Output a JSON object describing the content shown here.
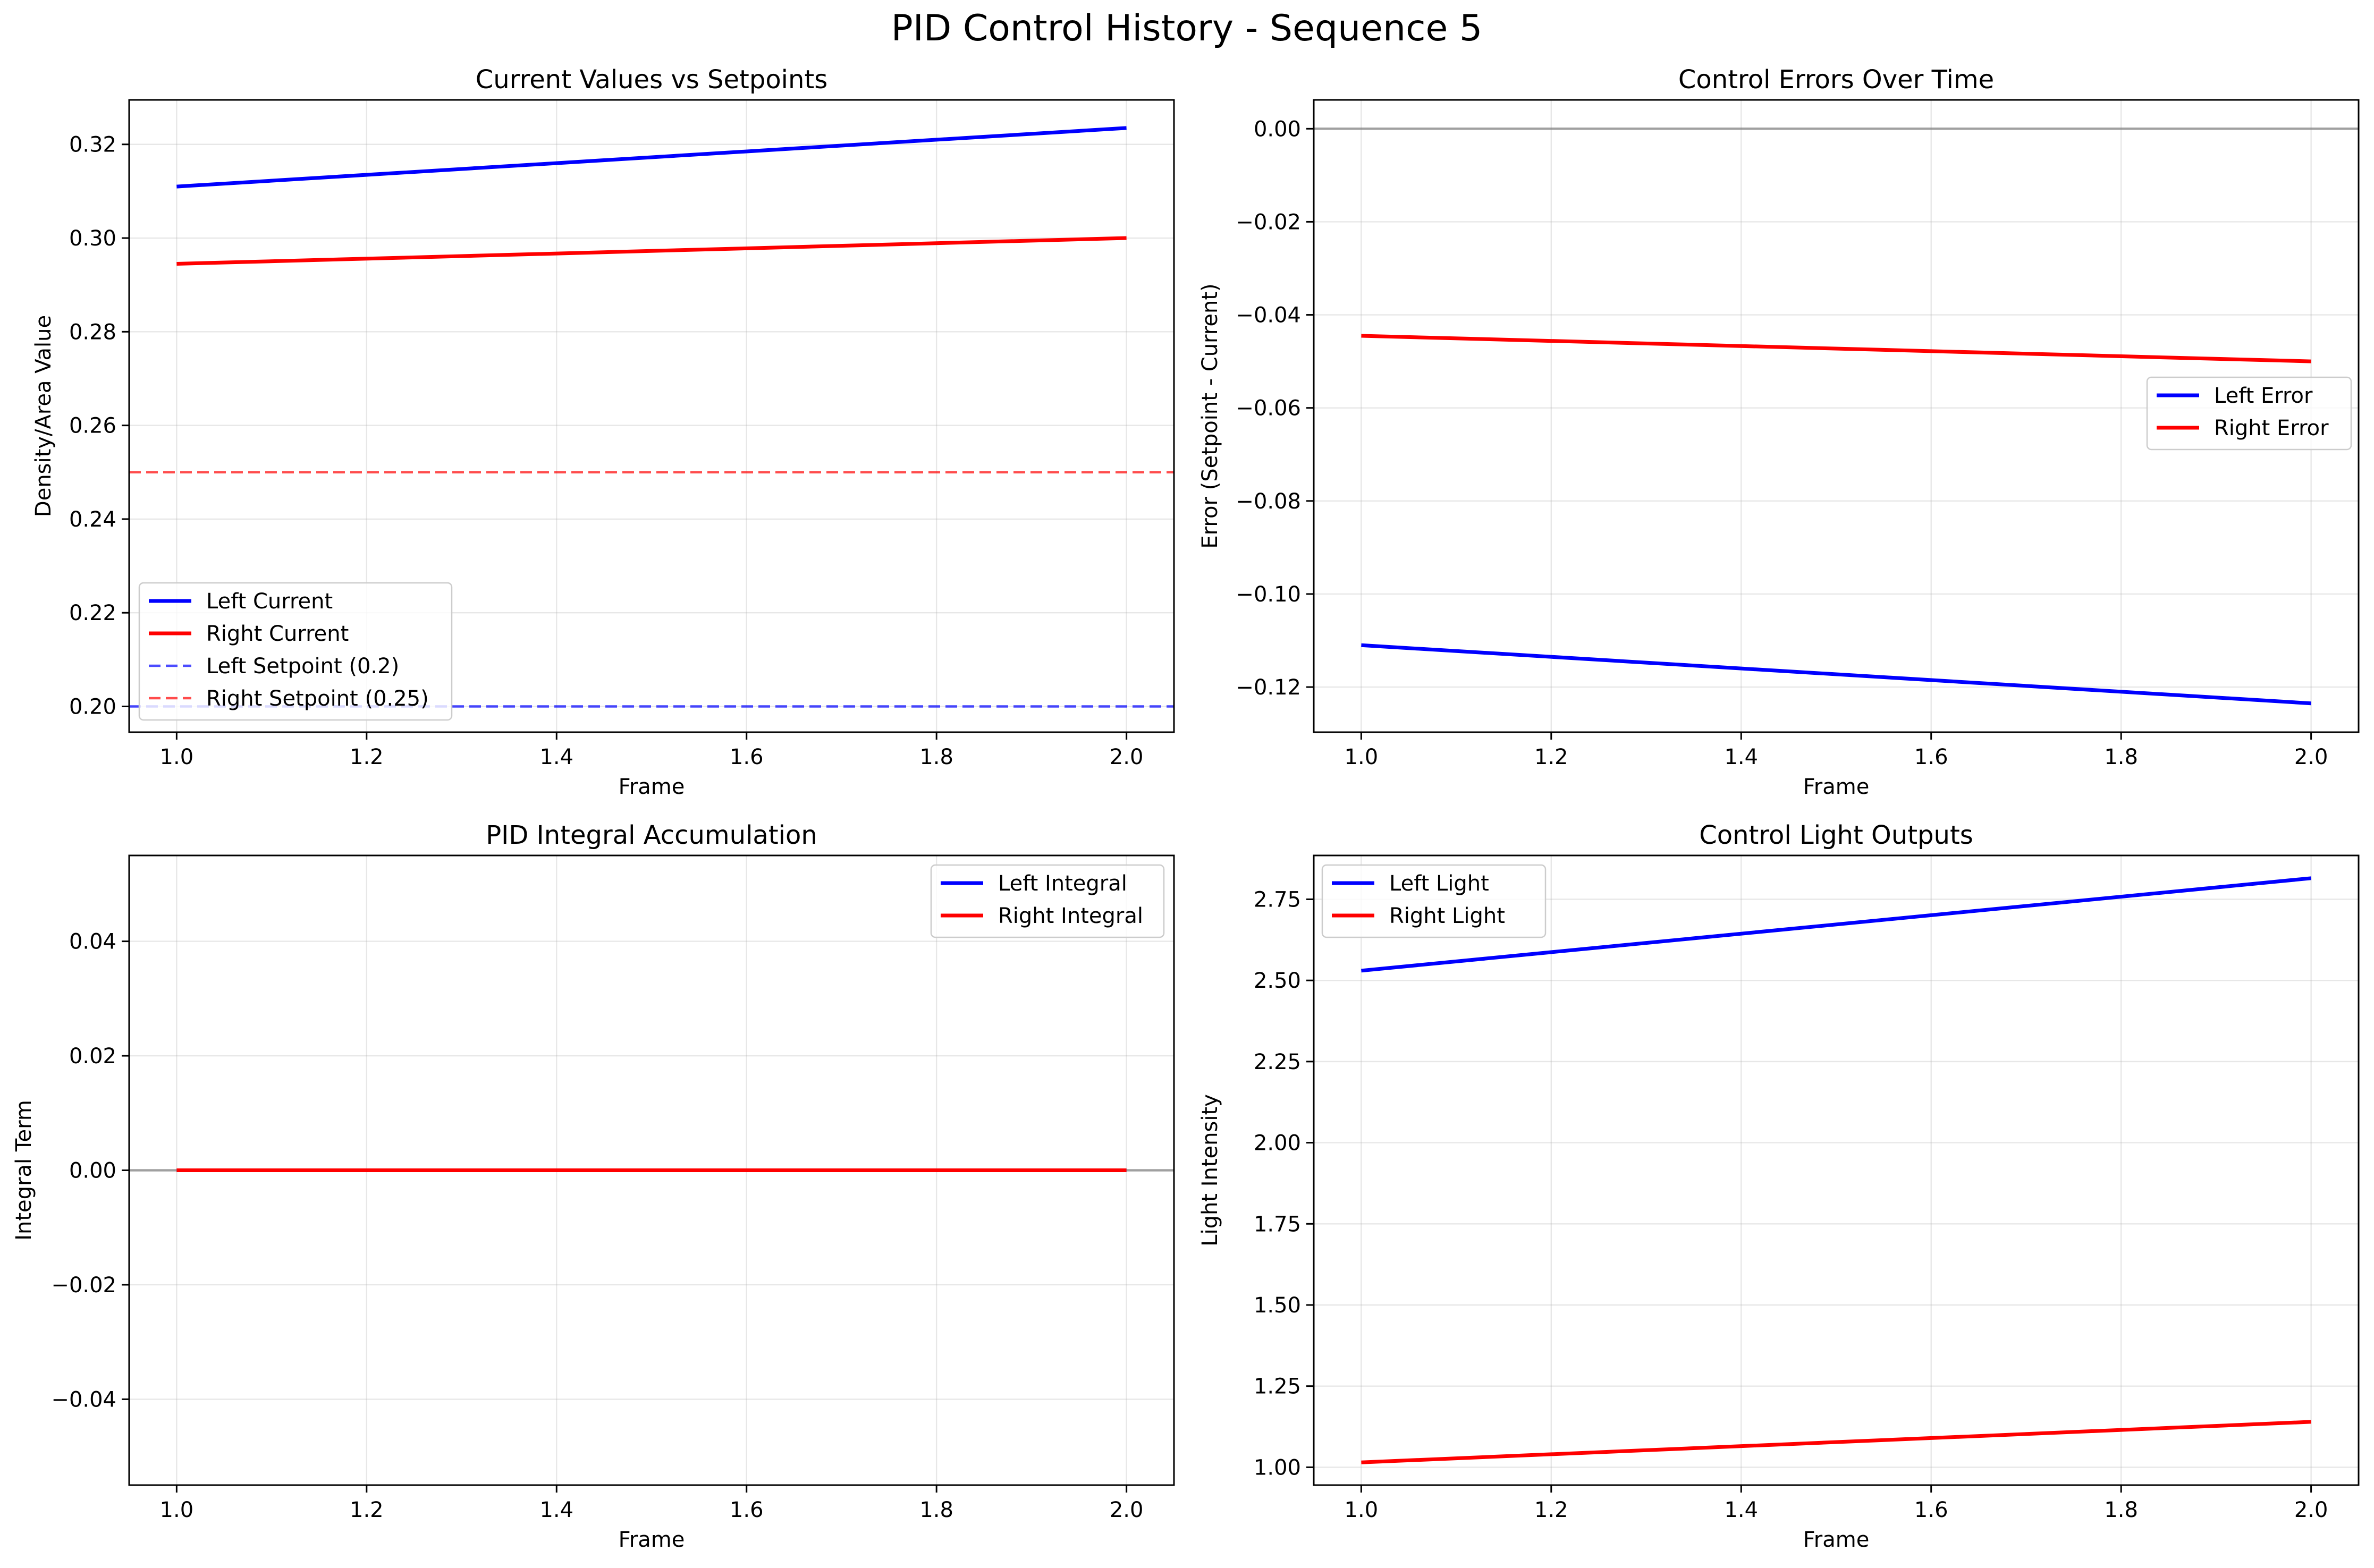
{
  "figure_title": "PID Control History - Sequence 5",
  "colors": {
    "left": "#0000ff",
    "right": "#ff0000",
    "zero_line": "#808080",
    "grid": "#b0b0b0"
  },
  "chart_data": [
    {
      "type": "line",
      "title": "Current Values vs Setpoints",
      "xlabel": "Frame",
      "ylabel": "Density/Area Value",
      "xlim": [
        0.95,
        2.05
      ],
      "ylim": [
        0.1945,
        0.3295
      ],
      "xticks": [
        1.0,
        1.2,
        1.4,
        1.6,
        1.8,
        2.0
      ],
      "xtick_labels": [
        "1.0",
        "1.2",
        "1.4",
        "1.6",
        "1.8",
        "2.0"
      ],
      "yticks": [
        0.2,
        0.22,
        0.24,
        0.26,
        0.28,
        0.3,
        0.32
      ],
      "ytick_labels": [
        "0.20",
        "0.22",
        "0.24",
        "0.26",
        "0.28",
        "0.30",
        "0.32"
      ],
      "grid": true,
      "legend_position": "lower-left",
      "series": [
        {
          "name": "Left Current",
          "color": "#0000ff",
          "style": "solid",
          "x": [
            1.0,
            2.0
          ],
          "y": [
            0.311,
            0.3235
          ]
        },
        {
          "name": "Right Current",
          "color": "#ff0000",
          "style": "solid",
          "x": [
            1.0,
            2.0
          ],
          "y": [
            0.2945,
            0.3
          ]
        }
      ],
      "hlines": [
        {
          "name": "Left Setpoint (0.2)",
          "color": "#0000ff",
          "style": "dashed",
          "y": 0.2
        },
        {
          "name": "Right Setpoint (0.25)",
          "color": "#ff0000",
          "style": "dashed",
          "y": 0.25
        }
      ]
    },
    {
      "type": "line",
      "title": "Control Errors Over Time",
      "xlabel": "Frame",
      "ylabel": "Error (Setpoint - Current)",
      "xlim": [
        0.95,
        2.05
      ],
      "ylim": [
        -0.1297,
        0.0062
      ],
      "xticks": [
        1.0,
        1.2,
        1.4,
        1.6,
        1.8,
        2.0
      ],
      "xtick_labels": [
        "1.0",
        "1.2",
        "1.4",
        "1.6",
        "1.8",
        "2.0"
      ],
      "yticks": [
        0.0,
        -0.02,
        -0.04,
        -0.06,
        -0.08,
        -0.1,
        -0.12
      ],
      "ytick_labels": [
        "0.00",
        "−0.02",
        "−0.04",
        "−0.06",
        "−0.08",
        "−0.10",
        "−0.12"
      ],
      "grid": true,
      "legend_position": "center-right",
      "series": [
        {
          "name": "Left Error",
          "color": "#0000ff",
          "style": "solid",
          "x": [
            1.0,
            2.0
          ],
          "y": [
            -0.111,
            -0.1235
          ]
        },
        {
          "name": "Right Error",
          "color": "#ff0000",
          "style": "solid",
          "x": [
            1.0,
            2.0
          ],
          "y": [
            -0.0445,
            -0.05
          ]
        }
      ],
      "hlines": [
        {
          "color": "#808080",
          "style": "solid",
          "y": 0.0
        }
      ]
    },
    {
      "type": "line",
      "title": "PID Integral Accumulation",
      "xlabel": "Frame",
      "ylabel": "Integral Term",
      "xlim": [
        0.95,
        2.05
      ],
      "ylim": [
        -0.055,
        0.055
      ],
      "xticks": [
        1.0,
        1.2,
        1.4,
        1.6,
        1.8,
        2.0
      ],
      "xtick_labels": [
        "1.0",
        "1.2",
        "1.4",
        "1.6",
        "1.8",
        "2.0"
      ],
      "yticks": [
        0.04,
        0.02,
        0.0,
        -0.02,
        -0.04
      ],
      "ytick_labels": [
        "0.04",
        "0.02",
        "0.00",
        "−0.02",
        "−0.04"
      ],
      "grid": true,
      "legend_position": "upper-right",
      "series": [
        {
          "name": "Left Integral",
          "color": "#0000ff",
          "style": "solid",
          "x": [
            1.0,
            2.0
          ],
          "y": [
            0.0,
            0.0
          ]
        },
        {
          "name": "Right Integral",
          "color": "#ff0000",
          "style": "solid",
          "x": [
            1.0,
            2.0
          ],
          "y": [
            0.0,
            0.0
          ]
        }
      ],
      "hlines": [
        {
          "color": "#808080",
          "style": "solid",
          "y": 0.0
        }
      ]
    },
    {
      "type": "line",
      "title": "Control Light Outputs",
      "xlabel": "Frame",
      "ylabel": "Light Intensity",
      "xlim": [
        0.95,
        2.05
      ],
      "ylim": [
        0.945,
        2.885
      ],
      "xticks": [
        1.0,
        1.2,
        1.4,
        1.6,
        1.8,
        2.0
      ],
      "xtick_labels": [
        "1.0",
        "1.2",
        "1.4",
        "1.6",
        "1.8",
        "2.0"
      ],
      "yticks": [
        1.0,
        1.25,
        1.5,
        1.75,
        2.0,
        2.25,
        2.5,
        2.75
      ],
      "ytick_labels": [
        "1.00",
        "1.25",
        "1.50",
        "1.75",
        "2.00",
        "2.25",
        "2.50",
        "2.75"
      ],
      "grid": true,
      "legend_position": "upper-left",
      "series": [
        {
          "name": "Left Light",
          "color": "#0000ff",
          "style": "solid",
          "x": [
            1.0,
            2.0
          ],
          "y": [
            2.53,
            2.815
          ]
        },
        {
          "name": "Right Light",
          "color": "#ff0000",
          "style": "solid",
          "x": [
            1.0,
            2.0
          ],
          "y": [
            1.015,
            1.14
          ]
        }
      ],
      "hlines": []
    }
  ]
}
